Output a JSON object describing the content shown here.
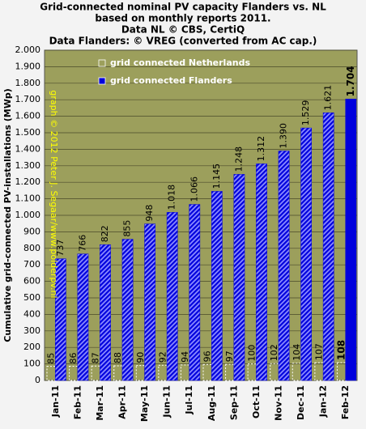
{
  "chart_data": {
    "type": "bar",
    "title_lines": [
      "Grid-connected nominal PV capacity Flanders vs. NL",
      "based on monthly reports 2011.",
      "Data NL © CBS, CertiQ",
      "Data Flanders: © VREG (converted from AC cap.)"
    ],
    "y_label": "Cumulative grid-connected PV-installations (MWp)",
    "annotation": "graph © 2012 Peter J. Segaar/www.polderpv.nl",
    "categories": [
      "Jan-11",
      "Feb-11",
      "Mar-11",
      "Apr-11",
      "May-11",
      "Jun-11",
      "Jul-11",
      "Aug-11",
      "Sep-11",
      "Oct-11",
      "Nov-11",
      "Dec-11",
      "Jan-12",
      "Feb-12"
    ],
    "series": [
      {
        "name": "grid connected Netherlands",
        "color": "#ffffff",
        "values": [
          85,
          86,
          87,
          88,
          90,
          92,
          94,
          96,
          97,
          100,
          102,
          104,
          107,
          108
        ]
      },
      {
        "name": "grid connected Flanders",
        "color": "#0000dd",
        "values": [
          737,
          766,
          822,
          855,
          948,
          1018,
          1066,
          1145,
          1248,
          1312,
          1390,
          1529,
          1621,
          1704
        ],
        "value_labels": [
          "737",
          "766",
          "822",
          "855",
          "948",
          "1.018",
          "1.066",
          "1.145",
          "1.248",
          "1.312",
          "1.390",
          "1.529",
          "1.621",
          "1.704"
        ]
      }
    ],
    "ylim": [
      0,
      2000
    ],
    "yticks": [
      0,
      100,
      200,
      300,
      400,
      500,
      600,
      700,
      800,
      900,
      {
        "value": 1000,
        "label": "1.000"
      },
      {
        "value": 1100,
        "label": "1.100"
      },
      {
        "value": 1200,
        "label": "1.200"
      },
      {
        "value": 1300,
        "label": "1.300"
      },
      {
        "value": 1400,
        "label": "1.400"
      },
      {
        "value": 1500,
        "label": "1.500"
      },
      {
        "value": 1600,
        "label": "1.600"
      },
      {
        "value": 1700,
        "label": "1.700"
      },
      {
        "value": 1800,
        "label": "1.800"
      },
      {
        "value": 1900,
        "label": "1.900"
      },
      {
        "value": 2000,
        "label": "2.000"
      }
    ],
    "grid": true
  }
}
